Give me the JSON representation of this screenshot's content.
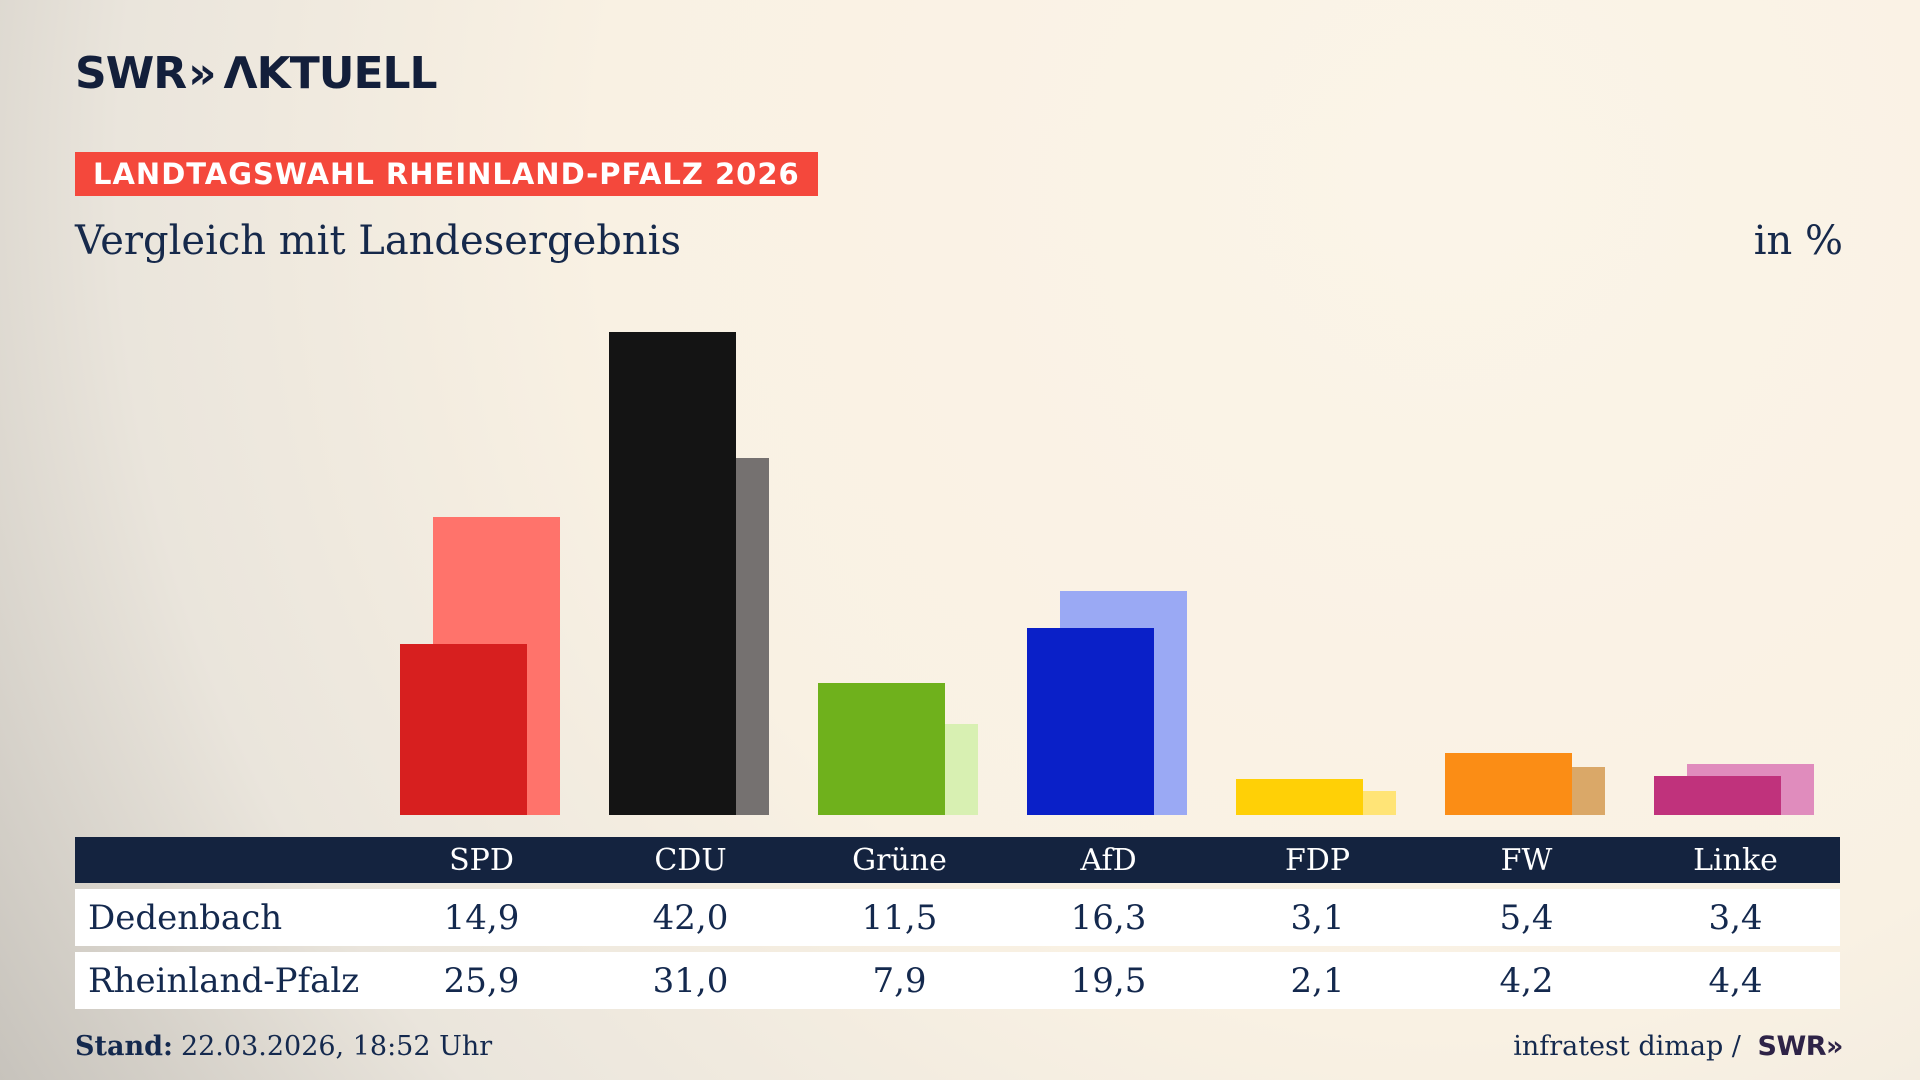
{
  "brand": {
    "swr": "SWR",
    "chevrons": "»",
    "aktuell": "ΛKTUELL"
  },
  "badge": {
    "label": "LANDTAGSWAHL RHEINLAND-PFALZ 2026",
    "bg": "#F4483C"
  },
  "title": "Vergleich mit Landesergebnis",
  "unit_label": "in %",
  "chart_data": {
    "type": "bar",
    "title": "Vergleich mit Landesergebnis",
    "unit": "in %",
    "categories": [
      "SPD",
      "CDU",
      "Grüne",
      "AfD",
      "FDP",
      "FW",
      "Linke"
    ],
    "series": [
      {
        "name": "Dedenbach",
        "role": "foreground",
        "values": [
          14.9,
          42.0,
          11.5,
          16.3,
          3.1,
          5.4,
          3.4
        ],
        "colors": [
          "#D71F1F",
          "#141414",
          "#6FB11C",
          "#0A20C8",
          "#FFD006",
          "#FB8D15",
          "#C0327C"
        ]
      },
      {
        "name": "Rheinland-Pfalz",
        "role": "background",
        "values": [
          25.9,
          31.0,
          7.9,
          19.5,
          2.1,
          4.2,
          4.4
        ],
        "colors": [
          "#FF736B",
          "#757170",
          "#D8F0B2",
          "#9AA9F4",
          "#FFE476",
          "#DAA868",
          "#E08CBD"
        ]
      }
    ],
    "ylim": [
      0,
      45
    ],
    "grid": false,
    "axes_visible": false,
    "legend": "table-below"
  },
  "table": {
    "columns": [
      "SPD",
      "CDU",
      "Grüne",
      "AfD",
      "FDP",
      "FW",
      "Linke"
    ],
    "rows": [
      {
        "label": "Dedenbach",
        "values": [
          "14,9",
          "42,0",
          "11,5",
          "16,3",
          "3,1",
          "5,4",
          "3,4"
        ]
      },
      {
        "label": "Rheinland-Pfalz",
        "values": [
          "25,9",
          "31,0",
          "7,9",
          "19,5",
          "2,1",
          "4,2",
          "4,4"
        ]
      }
    ]
  },
  "footer": {
    "stand_label": "Stand:",
    "stand_value": "22.03.2026, 18:52 Uhr",
    "source_text": "infratest dimap /",
    "source_logo_swr": "SWR",
    "source_logo_chevrons": "»"
  },
  "colors": {
    "accent_red": "#F4483C",
    "navy_text": "#16294B",
    "table_header_bg": "#14233F",
    "background_cream": "#F8F0E2"
  }
}
